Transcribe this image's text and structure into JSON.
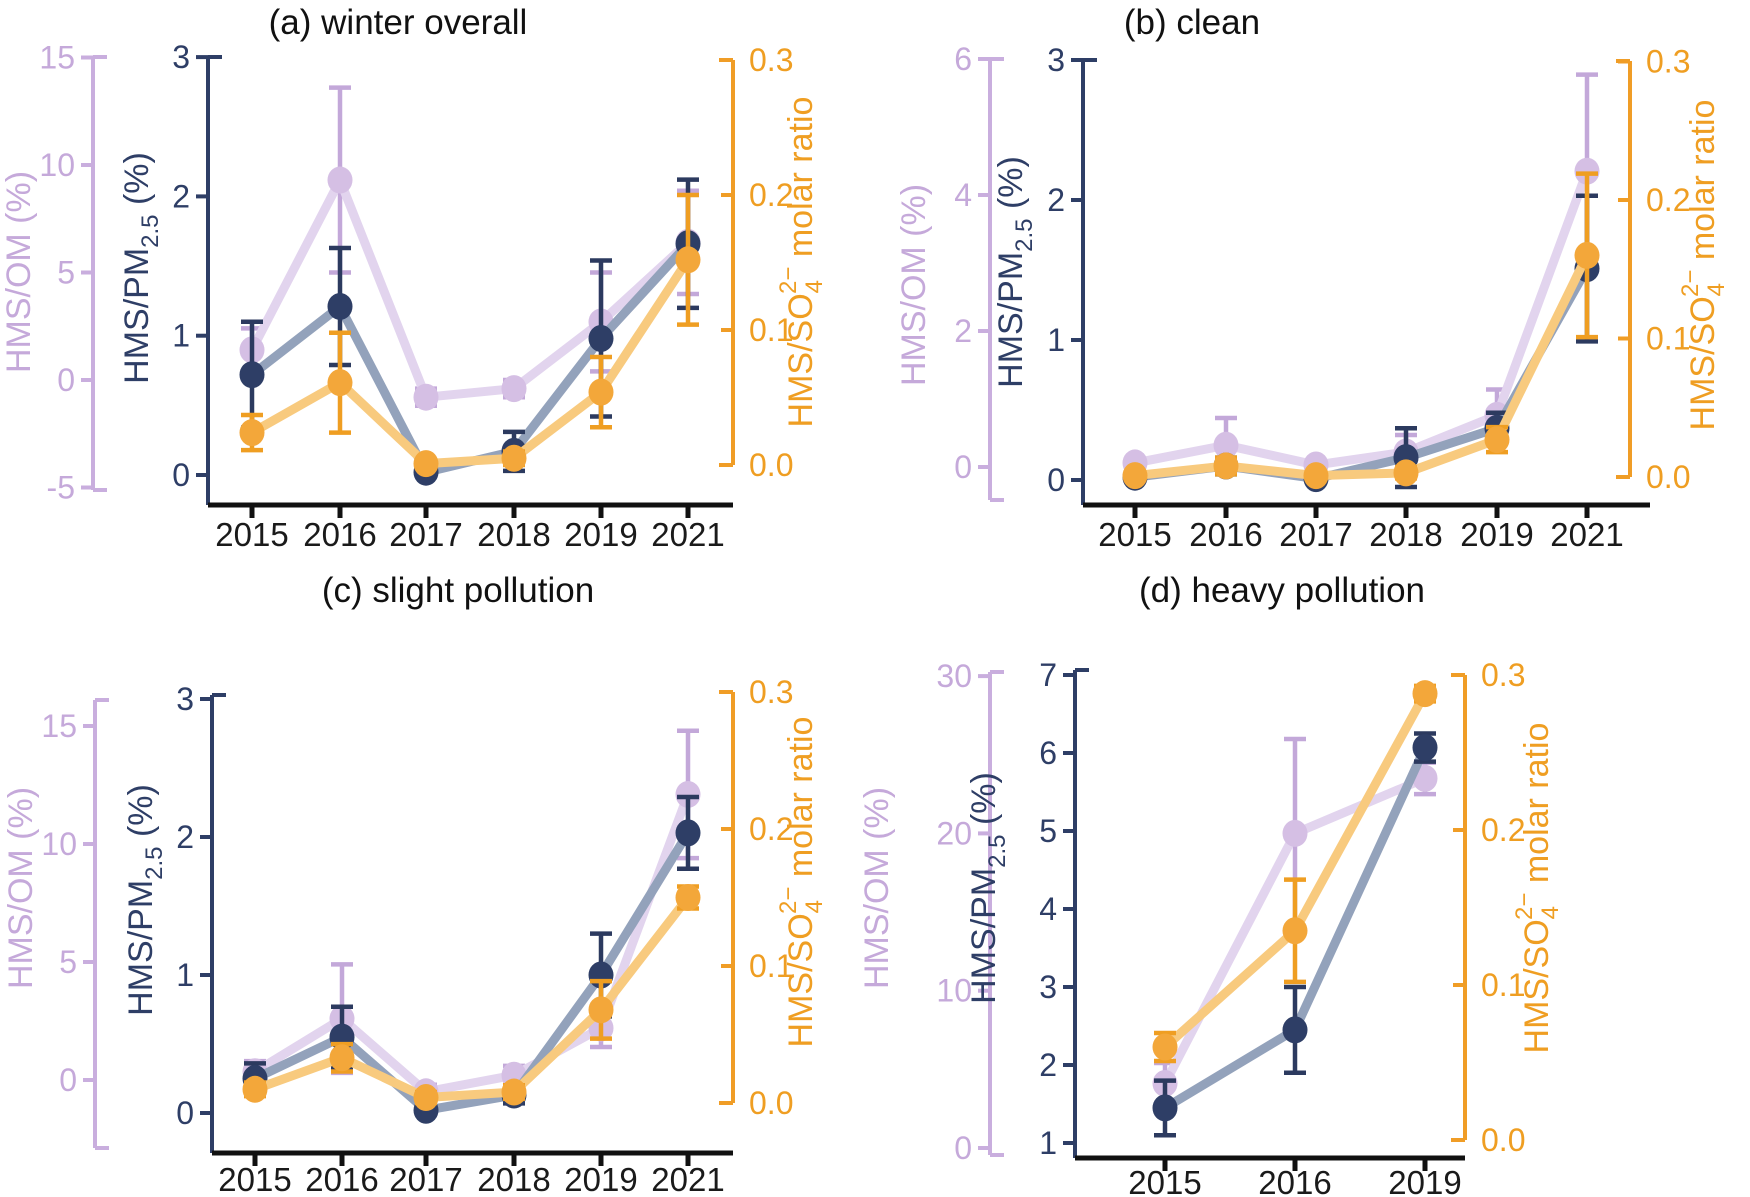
{
  "figure": {
    "background": "#ffffff"
  },
  "colors": {
    "lavender_marker": "#d5bfe4",
    "lavender_line": "#e2d4ee",
    "lavender_error": "#c3a8d9",
    "lavender_axis": "#c9aede",
    "lavender_tick_label": "#c5a9da",
    "navy_marker": "#2e3e66",
    "navy_line": "#93a2bb",
    "navy_error": "#2c3a5f",
    "navy_axis": "#2e3e66",
    "navy_tick_label": "#2e3e66",
    "orange_marker": "#f3a73a",
    "orange_line": "#f8ca7e",
    "orange_error": "#ef9e22",
    "orange_axis": "#f09d26",
    "orange_tick_label": "#ef9e22",
    "x_axis": "#111111",
    "title": "#111111",
    "x_tick_label": "#1a1a1a"
  },
  "chart_data": [
    {
      "id": "a",
      "type": "line",
      "title": "(a) winter overall",
      "x_categories": [
        "2015",
        "2016",
        "2017",
        "2018",
        "2019",
        "2021"
      ],
      "axes": {
        "left_outer": {
          "label": "HMS/OM (%)",
          "label_parts": [
            {
              "t": "HMS/OM (%)"
            }
          ],
          "ticks": [
            "15",
            "10",
            "5",
            "0",
            "-5"
          ],
          "range": [
            -5,
            15
          ],
          "color_role": "lavender"
        },
        "left_inner": {
          "label": "HMS/PM2.5 (%)",
          "label_parts": [
            {
              "t": "HMS/PM"
            },
            {
              "t": "2.5",
              "sub": true
            },
            {
              "t": " (%)"
            }
          ],
          "ticks": [
            "3",
            "2",
            "1",
            "0"
          ],
          "range": [
            0,
            3
          ],
          "color_role": "navy"
        },
        "right": {
          "label": "HMS/SO4 2- molar ratio",
          "label_parts": [
            {
              "t": "HMS/SO"
            },
            {
              "t": "4",
              "sub": true
            },
            {
              "t": "2−",
              "sup": true,
              "stack": true
            },
            {
              "t": " molar ratio"
            }
          ],
          "ticks": [
            "0.3",
            "0.2",
            "0.1",
            "0.0"
          ],
          "range": [
            0,
            0.3
          ],
          "color_role": "orange"
        }
      },
      "series": [
        {
          "name": "HMS/OM (%)",
          "axis": "left_outer",
          "color_role": "lavender",
          "values": [
            1.4,
            9.3,
            -0.8,
            -0.4,
            2.7,
            6.4
          ],
          "errors": [
            1.0,
            4.3,
            0.4,
            0.4,
            2.3,
            2.4
          ]
        },
        {
          "name": "HMS/PM2.5 (%)",
          "axis": "left_inner",
          "color_role": "navy",
          "values": [
            0.72,
            1.21,
            0.02,
            0.17,
            0.98,
            1.66
          ],
          "errors": [
            0.38,
            0.42,
            0.03,
            0.14,
            0.56,
            0.46
          ]
        },
        {
          "name": "HMS/SO4 2- molar ratio",
          "axis": "right",
          "color_role": "orange",
          "values": [
            0.024,
            0.061,
            0.001,
            0.005,
            0.054,
            0.152
          ],
          "errors": [
            0.013,
            0.037,
            0.003,
            0.005,
            0.026,
            0.048
          ]
        }
      ]
    },
    {
      "id": "b",
      "type": "line",
      "title": "(b) clean",
      "x_categories": [
        "2015",
        "2016",
        "2017",
        "2018",
        "2019",
        "2021"
      ],
      "axes": {
        "left_outer": {
          "label": "HMS/OM (%)",
          "label_parts": [
            {
              "t": "HMS/OM (%)"
            }
          ],
          "ticks": [
            "6",
            "4",
            "2",
            "0"
          ],
          "range": [
            0,
            6
          ],
          "color_role": "lavender"
        },
        "left_inner": {
          "label": "HMS/PM2.5 (%)",
          "label_parts": [
            {
              "t": "HMS/PM"
            },
            {
              "t": "2.5",
              "sub": true
            },
            {
              "t": " (%)"
            }
          ],
          "ticks": [
            "3",
            "2",
            "1",
            "0"
          ],
          "range": [
            0,
            3
          ],
          "color_role": "navy"
        },
        "right": {
          "label": "HMS/SO4 2- molar ratio",
          "label_parts": [
            {
              "t": "HMS/SO"
            },
            {
              "t": "4",
              "sub": true
            },
            {
              "t": "2−",
              "sup": true,
              "stack": true
            },
            {
              "t": " molar ratio"
            }
          ],
          "ticks": [
            "0.3",
            "0.2",
            "0.1",
            "0.0"
          ],
          "range": [
            0,
            0.3
          ],
          "color_role": "orange"
        }
      },
      "series": [
        {
          "name": "HMS/OM (%)",
          "axis": "left_outer",
          "color_role": "lavender",
          "values": [
            0.06,
            0.32,
            0.03,
            0.22,
            0.76,
            4.35
          ],
          "errors": [
            0.06,
            0.4,
            0.05,
            0.25,
            0.38,
            1.42
          ]
        },
        {
          "name": "HMS/PM2.5 (%)",
          "axis": "left_inner",
          "color_role": "navy",
          "values": [
            0.02,
            0.1,
            0.01,
            0.16,
            0.37,
            1.51
          ],
          "errors": [
            0.02,
            0.06,
            0.02,
            0.21,
            0.11,
            0.52
          ]
        },
        {
          "name": "HMS/SO4 2- molar ratio",
          "axis": "right",
          "color_role": "orange",
          "values": [
            0.001,
            0.008,
            0.001,
            0.003,
            0.027,
            0.16
          ],
          "errors": [
            0.002,
            0.006,
            0.002,
            0.004,
            0.009,
            0.059
          ]
        }
      ]
    },
    {
      "id": "c",
      "type": "line",
      "title": "(c) slight pollution",
      "x_categories": [
        "2015",
        "2016",
        "2017",
        "2018",
        "2019",
        "2021"
      ],
      "axes": {
        "left_outer": {
          "label": "HMS/OM (%)",
          "label_parts": [
            {
              "t": "HMS/OM (%)"
            }
          ],
          "ticks": [
            "15",
            "10",
            "5",
            "0"
          ],
          "range": [
            0,
            15
          ],
          "color_role": "lavender"
        },
        "left_inner": {
          "label": "HMS/PM2.5 (%)",
          "label_parts": [
            {
              "t": "HMS/PM"
            },
            {
              "t": "2.5",
              "sub": true
            },
            {
              "t": " (%)"
            }
          ],
          "ticks": [
            "3",
            "2",
            "1",
            "0"
          ],
          "range": [
            0,
            3
          ],
          "color_role": "navy"
        },
        "right": {
          "label": "HMS/SO4 2- molar ratio",
          "label_parts": [
            {
              "t": "HMS/SO"
            },
            {
              "t": "4",
              "sub": true
            },
            {
              "t": "2−",
              "sup": true,
              "stack": true
            },
            {
              "t": " molar ratio"
            }
          ],
          "ticks": [
            "0.3",
            "0.2",
            "0.1",
            "0.0"
          ],
          "range": [
            0,
            0.3
          ],
          "color_role": "orange"
        }
      },
      "series": [
        {
          "name": "HMS/OM (%)",
          "axis": "left_outer",
          "color_role": "lavender",
          "values": [
            0.35,
            2.6,
            -0.5,
            0.2,
            2.2,
            12.1
          ],
          "errors": [
            0.45,
            2.3,
            0.3,
            0.4,
            0.8,
            2.7
          ]
        },
        {
          "name": "HMS/PM2.5 (%)",
          "axis": "left_inner",
          "color_role": "navy",
          "values": [
            0.25,
            0.55,
            0.02,
            0.13,
            1.0,
            2.03
          ],
          "errors": [
            0.11,
            0.22,
            0.03,
            0.06,
            0.3,
            0.26
          ]
        },
        {
          "name": "HMS/SO4 2- molar ratio",
          "axis": "right",
          "color_role": "orange",
          "values": [
            0.01,
            0.033,
            0.004,
            0.008,
            0.068,
            0.15
          ],
          "errors": [
            0.005,
            0.01,
            0.004,
            0.005,
            0.021,
            0.008
          ]
        }
      ]
    },
    {
      "id": "d",
      "type": "line",
      "title": "(d) heavy pollution",
      "x_categories": [
        "2015",
        "2016",
        "2019"
      ],
      "axes": {
        "left_outer": {
          "label": "HMS/OM (%)",
          "label_parts": [
            {
              "t": "HMS/OM (%)"
            }
          ],
          "ticks": [
            "30",
            "20",
            "10",
            "0"
          ],
          "range": [
            0,
            30
          ],
          "color_role": "lavender"
        },
        "left_inner": {
          "label": "HMS/PM2.5 (%)",
          "label_parts": [
            {
              "t": "HMS/PM"
            },
            {
              "t": "2.5",
              "sub": true
            },
            {
              "t": " (%)"
            }
          ],
          "ticks": [
            "7",
            "6",
            "5",
            "4",
            "3",
            "2",
            "1"
          ],
          "range": [
            1,
            7
          ],
          "color_role": "navy"
        },
        "right": {
          "label": "HMS/SO4 2- molar ratio",
          "label_parts": [
            {
              "t": "HMS/SO"
            },
            {
              "t": "4",
              "sub": true
            },
            {
              "t": "2−",
              "sup": true,
              "stack": true
            },
            {
              "t": " molar ratio"
            }
          ],
          "ticks": [
            "0.3",
            "0.2",
            "0.1",
            "0.0"
          ],
          "range": [
            0,
            0.3
          ],
          "color_role": "orange"
        }
      },
      "series": [
        {
          "name": "HMS/OM (%)",
          "axis": "left_outer",
          "color_role": "lavender",
          "values": [
            4.1,
            20.0,
            23.5
          ],
          "errors": [
            1.3,
            6.0,
            1.0
          ]
        },
        {
          "name": "HMS/PM2.5 (%)",
          "axis": "left_inner",
          "color_role": "navy",
          "values": [
            1.45,
            2.45,
            6.07
          ],
          "errors": [
            0.35,
            0.55,
            0.18
          ]
        },
        {
          "name": "HMS/SO4 2- molar ratio",
          "axis": "right",
          "color_role": "orange",
          "values": [
            0.06,
            0.135,
            0.288
          ],
          "errors": [
            0.009,
            0.033,
            0.005
          ]
        }
      ]
    }
  ]
}
